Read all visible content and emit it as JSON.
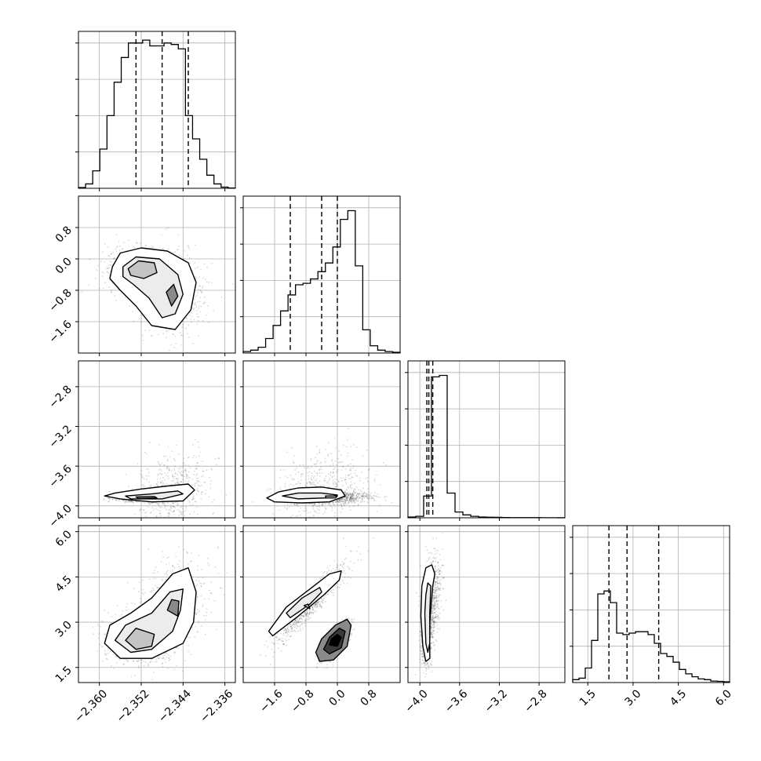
{
  "chart_data": {
    "type": "corner",
    "grid": true,
    "parameters": [
      {
        "range": [
          -2.364,
          -2.334
        ],
        "ticks": [
          -2.36,
          -2.352,
          -2.344,
          -2.336
        ],
        "tick_labels": [
          "−2.360",
          "−2.352",
          "−2.344",
          "−2.336"
        ],
        "quantiles": [
          -2.353,
          -2.348,
          -2.343
        ],
        "histogram": [
          0.005,
          0.03,
          0.12,
          0.27,
          0.5,
          0.73,
          0.9,
          1.0,
          1.0,
          1.02,
          0.98,
          0.98,
          1.0,
          0.99,
          0.96,
          0.5,
          0.34,
          0.2,
          0.09,
          0.03,
          0.008,
          0.002
        ]
      },
      {
        "range": [
          -2.4,
          1.6
        ],
        "ticks": [
          -1.6,
          -0.8,
          0.0,
          0.8
        ],
        "tick_labels": [
          "−1.6",
          "−0.8",
          "0.0",
          "0.8"
        ],
        "quantiles": [
          -1.2,
          -0.4,
          0.0
        ],
        "histogram": [
          0.01,
          0.02,
          0.04,
          0.1,
          0.19,
          0.29,
          0.4,
          0.47,
          0.48,
          0.51,
          0.56,
          0.62,
          0.73,
          0.92,
          0.98,
          0.6,
          0.16,
          0.05,
          0.02,
          0.01,
          0.005
        ]
      },
      {
        "range": [
          -4.12,
          -2.54
        ],
        "ticks": [
          -4.0,
          -3.6,
          -3.2,
          -2.8
        ],
        "tick_labels": [
          "−4.0",
          "−3.6",
          "−3.2",
          "−2.8"
        ],
        "quantiles": [
          -3.93,
          -3.91,
          -3.87
        ],
        "histogram": [
          0.005,
          0.01,
          0.15,
          0.97,
          0.98,
          0.17,
          0.04,
          0.02,
          0.01,
          0.005,
          0.004,
          0.003,
          0.002,
          0.001,
          0.001,
          0.001,
          0.001,
          0.0005,
          0.0005,
          0.0003
        ]
      },
      {
        "range": [
          1.0,
          6.2
        ],
        "ticks": [
          1.5,
          3.0,
          4.5,
          6.0
        ],
        "tick_labels": [
          "1.5",
          "3.0",
          "4.5",
          "6.0"
        ],
        "quantiles": [
          2.2,
          2.8,
          3.85
        ],
        "histogram": [
          0.02,
          0.03,
          0.1,
          0.29,
          0.61,
          0.63,
          0.55,
          0.34,
          0.33,
          0.34,
          0.35,
          0.35,
          0.33,
          0.27,
          0.2,
          0.18,
          0.14,
          0.09,
          0.06,
          0.04,
          0.025,
          0.02,
          0.01,
          0.008,
          0.005
        ]
      }
    ],
    "pairs": [
      {
        "x_param": 0,
        "y_param": 1,
        "point_count": 1500,
        "modes": [
          {
            "weight": 0.55,
            "center": [
              -2.3515,
              -0.3
            ],
            "sd": [
              0.0035,
              0.32
            ],
            "rho": 0.0
          },
          {
            "weight": 0.45,
            "center": [
              -2.346,
              -1.0
            ],
            "sd": [
              0.003,
              0.45
            ],
            "rho": 0.0
          }
        ],
        "contours": [
          [
            [
              -2.3575,
              -0.2
            ],
            [
              -2.356,
              0.15
            ],
            [
              -2.352,
              0.28
            ],
            [
              -2.347,
              0.2
            ],
            [
              -2.343,
              -0.1
            ],
            [
              -2.3415,
              -0.6
            ],
            [
              -2.3425,
              -1.3
            ],
            [
              -2.3455,
              -1.8
            ],
            [
              -2.35,
              -1.7
            ],
            [
              -2.353,
              -1.2
            ],
            [
              -2.356,
              -0.8
            ],
            [
              -2.358,
              -0.5
            ]
          ],
          [
            [
              -2.3555,
              -0.2
            ],
            [
              -2.353,
              0.05
            ],
            [
              -2.3485,
              0.0
            ],
            [
              -2.345,
              -0.4
            ],
            [
              -2.344,
              -0.9
            ],
            [
              -2.3455,
              -1.4
            ],
            [
              -2.348,
              -1.5
            ],
            [
              -2.3505,
              -1.0
            ],
            [
              -2.3535,
              -0.65
            ],
            [
              -2.3555,
              -0.45
            ]
          ],
          [
            [
              -2.3545,
              -0.25
            ],
            [
              -2.3525,
              -0.05
            ],
            [
              -2.3495,
              -0.1
            ],
            [
              -2.349,
              -0.35
            ],
            [
              -2.3515,
              -0.5
            ],
            [
              -2.354,
              -0.42
            ]
          ],
          [
            [
              -2.3472,
              -0.85
            ],
            [
              -2.3458,
              -0.65
            ],
            [
              -2.345,
              -0.95
            ],
            [
              -2.3462,
              -1.2
            ]
          ]
        ]
      },
      {
        "x_param": 0,
        "y_param": 2,
        "point_count": 1500,
        "modes": [
          {
            "weight": 0.65,
            "center": [
              -2.351,
              -3.92
            ],
            "sd": [
              0.003,
              0.02
            ],
            "rho": 0.0
          },
          {
            "weight": 0.35,
            "center": [
              -2.346,
              -3.85
            ],
            "sd": [
              0.0035,
              0.18
            ],
            "rho": 0.2
          }
        ],
        "contours": [
          [
            [
              -2.357,
              -3.87
            ],
            [
              -2.352,
              -3.83
            ],
            [
              -2.347,
              -3.8
            ],
            [
              -2.343,
              -3.78
            ],
            [
              -2.3418,
              -3.84
            ],
            [
              -2.344,
              -3.95
            ],
            [
              -2.35,
              -3.96
            ],
            [
              -2.356,
              -3.93
            ],
            [
              -2.359,
              -3.9
            ]
          ],
          [
            [
              -2.355,
              -3.9
            ],
            [
              -2.35,
              -3.88
            ],
            [
              -2.345,
              -3.85
            ],
            [
              -2.344,
              -3.88
            ],
            [
              -2.348,
              -3.93
            ],
            [
              -2.354,
              -3.93
            ]
          ],
          [
            [
              -2.353,
              -3.91
            ],
            [
              -2.3495,
              -3.905
            ],
            [
              -2.349,
              -3.92
            ],
            [
              -2.3525,
              -3.925
            ]
          ]
        ]
      },
      {
        "x_param": 1,
        "y_param": 2,
        "point_count": 1500,
        "modes": [
          {
            "weight": 0.65,
            "center": [
              -0.2,
              -3.92
            ],
            "sd": [
              0.5,
              0.03
            ],
            "rho": 0.2
          },
          {
            "weight": 0.35,
            "center": [
              -0.4,
              -3.82
            ],
            "sd": [
              0.6,
              0.2
            ],
            "rho": 0.3
          }
        ],
        "contours": [
          [
            [
              -1.8,
              -3.92
            ],
            [
              -1.5,
              -3.86
            ],
            [
              -1.0,
              -3.82
            ],
            [
              -0.4,
              -3.81
            ],
            [
              0.1,
              -3.84
            ],
            [
              0.2,
              -3.9
            ],
            [
              -0.2,
              -3.96
            ],
            [
              -0.9,
              -3.97
            ],
            [
              -1.6,
              -3.96
            ]
          ],
          [
            [
              -1.4,
              -3.9
            ],
            [
              -1.0,
              -3.87
            ],
            [
              -0.4,
              -3.87
            ],
            [
              0.0,
              -3.89
            ],
            [
              -0.3,
              -3.92
            ],
            [
              -1.0,
              -3.93
            ]
          ],
          [
            [
              -0.3,
              -3.9
            ],
            [
              0.0,
              -3.9
            ],
            [
              -0.05,
              -3.92
            ],
            [
              -0.3,
              -3.92
            ]
          ]
        ]
      },
      {
        "x_param": 0,
        "y_param": 3,
        "point_count": 1500,
        "modes": [
          {
            "weight": 0.55,
            "center": [
              -2.352,
              2.4
            ],
            "sd": [
              0.0035,
              0.4
            ],
            "rho": 0.0
          },
          {
            "weight": 0.45,
            "center": [
              -2.346,
              3.6
            ],
            "sd": [
              0.0035,
              0.7
            ],
            "rho": 0.3
          }
        ],
        "contours": [
          [
            [
              -2.359,
              2.3
            ],
            [
              -2.356,
              1.8
            ],
            [
              -2.35,
              1.8
            ],
            [
              -2.344,
              2.3
            ],
            [
              -2.342,
              3.0
            ],
            [
              -2.3415,
              4.0
            ],
            [
              -2.343,
              4.8
            ],
            [
              -2.346,
              4.6
            ],
            [
              -2.35,
              3.8
            ],
            [
              -2.354,
              3.3
            ],
            [
              -2.358,
              2.9
            ]
          ],
          [
            [
              -2.357,
              2.4
            ],
            [
              -2.354,
              2.0
            ],
            [
              -2.35,
              2.1
            ],
            [
              -2.346,
              2.7
            ],
            [
              -2.3445,
              3.4
            ],
            [
              -2.344,
              4.1
            ],
            [
              -2.3465,
              4.0
            ],
            [
              -2.35,
              3.3
            ],
            [
              -2.355,
              2.9
            ]
          ],
          [
            [
              -2.355,
              2.4
            ],
            [
              -2.353,
              2.1
            ],
            [
              -2.35,
              2.2
            ],
            [
              -2.3495,
              2.6
            ],
            [
              -2.353,
              2.8
            ]
          ],
          [
            [
              -2.347,
              3.4
            ],
            [
              -2.345,
              3.2
            ],
            [
              -2.3448,
              3.7
            ],
            [
              -2.3462,
              3.75
            ]
          ]
        ]
      },
      {
        "x_param": 1,
        "y_param": 3,
        "point_count": 1500,
        "modes": [
          {
            "weight": 0.5,
            "center": [
              -0.7,
              3.6
            ],
            "sd": [
              0.45,
              0.65
            ],
            "rho": 0.93
          },
          {
            "weight": 0.5,
            "center": [
              -0.05,
              2.3
            ],
            "sd": [
              0.17,
              0.28
            ],
            "rho": 0.7
          }
        ],
        "contours": [
          [
            [
              -1.75,
              2.7
            ],
            [
              -1.65,
              2.55
            ],
            [
              -1.0,
              3.2
            ],
            [
              -0.35,
              3.9
            ],
            [
              0.05,
              4.4
            ],
            [
              0.1,
              4.7
            ],
            [
              -0.2,
              4.6
            ],
            [
              -0.7,
              4.1
            ],
            [
              -1.3,
              3.5
            ]
          ],
          [
            [
              -1.3,
              3.3
            ],
            [
              -1.2,
              3.15
            ],
            [
              -0.7,
              3.6
            ],
            [
              -0.4,
              4.0
            ],
            [
              -0.45,
              4.15
            ],
            [
              -0.9,
              3.8
            ]
          ],
          [
            [
              -0.85,
              3.55
            ],
            [
              -0.7,
              3.45
            ],
            [
              -0.75,
              3.6
            ]
          ],
          [
            [
              -0.55,
              2.0
            ],
            [
              -0.45,
              1.7
            ],
            [
              -0.1,
              1.75
            ],
            [
              0.25,
              2.2
            ],
            [
              0.35,
              2.9
            ],
            [
              0.25,
              3.1
            ],
            [
              -0.05,
              2.9
            ],
            [
              -0.4,
              2.45
            ]
          ],
          [
            [
              -0.35,
              2.1
            ],
            [
              -0.2,
              1.95
            ],
            [
              0.1,
              2.15
            ],
            [
              0.2,
              2.7
            ],
            [
              0.05,
              2.8
            ],
            [
              -0.2,
              2.5
            ]
          ],
          [
            [
              -0.2,
              2.25
            ],
            [
              0.0,
              2.2
            ],
            [
              0.1,
              2.5
            ],
            [
              0.0,
              2.6
            ],
            [
              -0.15,
              2.45
            ]
          ]
        ]
      },
      {
        "x_param": 2,
        "y_param": 3,
        "point_count": 1500,
        "modes": [
          {
            "weight": 0.55,
            "center": [
              -3.93,
              2.6
            ],
            "sd": [
              0.025,
              0.5
            ],
            "rho": 0.2
          },
          {
            "weight": 0.45,
            "center": [
              -3.89,
              3.6
            ],
            "sd": [
              0.05,
              0.8
            ],
            "rho": 0.45
          }
        ],
        "contours": [
          [
            [
              -3.99,
              3.2
            ],
            [
              -3.97,
              2.2
            ],
            [
              -3.94,
              1.7
            ],
            [
              -3.9,
              1.8
            ],
            [
              -3.9,
              3.0
            ],
            [
              -3.87,
              4.2
            ],
            [
              -3.85,
              4.6
            ],
            [
              -3.88,
              4.9
            ],
            [
              -3.94,
              4.8
            ],
            [
              -3.98,
              4.2
            ]
          ],
          [
            [
              -3.95,
              3.3
            ],
            [
              -3.94,
              2.3
            ],
            [
              -3.92,
              2.0
            ],
            [
              -3.9,
              2.3
            ],
            [
              -3.9,
              3.3
            ],
            [
              -3.89,
              4.2
            ],
            [
              -3.92,
              4.3
            ],
            [
              -3.94,
              3.9
            ]
          ]
        ]
      }
    ]
  }
}
